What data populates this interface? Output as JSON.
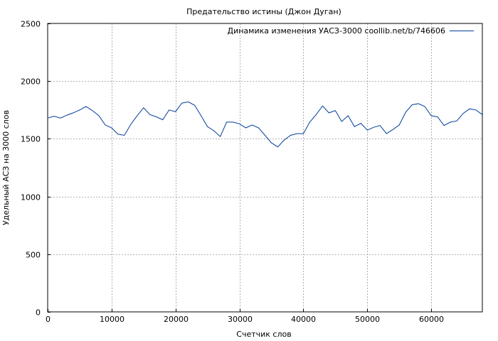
{
  "chart_data": {
    "type": "line",
    "title": "Предательство истины (Джон Дуган)",
    "xlabel": "Счетчик слов",
    "ylabel": "Удельный АСЗ на 3000 слов",
    "xlim": [
      0,
      68000
    ],
    "ylim": [
      0,
      2500
    ],
    "xticks": [
      0,
      10000,
      20000,
      30000,
      40000,
      50000,
      60000
    ],
    "yticks": [
      0,
      500,
      1000,
      1500,
      2000,
      2500
    ],
    "grid": true,
    "legend_position": "top-right",
    "series": [
      {
        "name": "Динамика изменения УАСЗ-3000 coollib.net/b/746606",
        "color": "#003d99",
        "points": [
          [
            0,
            1680
          ],
          [
            1000,
            1695
          ],
          [
            2000,
            1680
          ],
          [
            3000,
            1705
          ],
          [
            4000,
            1725
          ],
          [
            5000,
            1750
          ],
          [
            6000,
            1780
          ],
          [
            7000,
            1745
          ],
          [
            8000,
            1700
          ],
          [
            9000,
            1620
          ],
          [
            10000,
            1595
          ],
          [
            11000,
            1540
          ],
          [
            12000,
            1530
          ],
          [
            13000,
            1625
          ],
          [
            14000,
            1700
          ],
          [
            15000,
            1770
          ],
          [
            16000,
            1710
          ],
          [
            17000,
            1690
          ],
          [
            18000,
            1665
          ],
          [
            19000,
            1750
          ],
          [
            20000,
            1735
          ],
          [
            21000,
            1810
          ],
          [
            22000,
            1820
          ],
          [
            23000,
            1790
          ],
          [
            24000,
            1700
          ],
          [
            25000,
            1605
          ],
          [
            26000,
            1570
          ],
          [
            27000,
            1520
          ],
          [
            28000,
            1645
          ],
          [
            29000,
            1645
          ],
          [
            30000,
            1630
          ],
          [
            31000,
            1595
          ],
          [
            32000,
            1620
          ],
          [
            33000,
            1595
          ],
          [
            34000,
            1530
          ],
          [
            35000,
            1465
          ],
          [
            36000,
            1430
          ],
          [
            37000,
            1490
          ],
          [
            38000,
            1530
          ],
          [
            39000,
            1545
          ],
          [
            40000,
            1545
          ],
          [
            41000,
            1645
          ],
          [
            42000,
            1710
          ],
          [
            43000,
            1785
          ],
          [
            44000,
            1725
          ],
          [
            45000,
            1745
          ],
          [
            46000,
            1650
          ],
          [
            47000,
            1700
          ],
          [
            48000,
            1605
          ],
          [
            49000,
            1635
          ],
          [
            50000,
            1575
          ],
          [
            51000,
            1600
          ],
          [
            52000,
            1615
          ],
          [
            53000,
            1545
          ],
          [
            54000,
            1580
          ],
          [
            55000,
            1620
          ],
          [
            56000,
            1730
          ],
          [
            57000,
            1795
          ],
          [
            58000,
            1805
          ],
          [
            59000,
            1780
          ],
          [
            60000,
            1700
          ],
          [
            61000,
            1690
          ],
          [
            62000,
            1615
          ],
          [
            63000,
            1645
          ],
          [
            64000,
            1655
          ],
          [
            65000,
            1720
          ],
          [
            66000,
            1760
          ],
          [
            67000,
            1750
          ],
          [
            68000,
            1710
          ]
        ]
      }
    ]
  }
}
